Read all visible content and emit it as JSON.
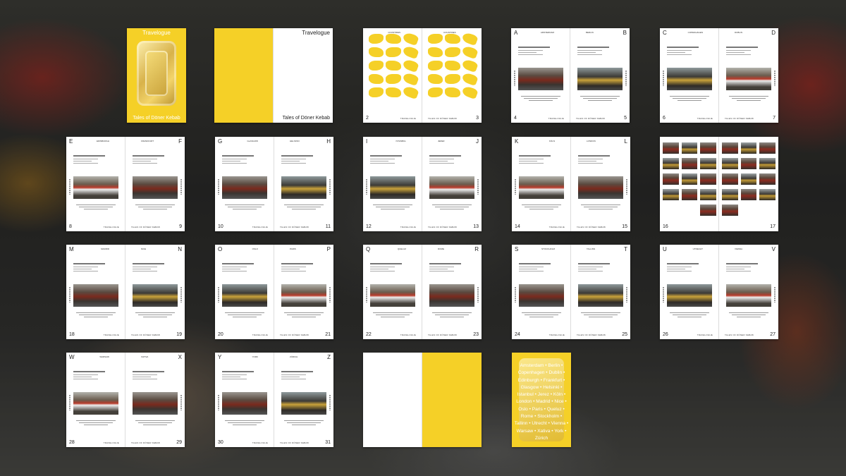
{
  "book": {
    "title": "Travelogue",
    "subtitle": "Tales of Döner Kebab",
    "footer_left": "TRAVELOGUE",
    "footer_right": "TALES OF DÖNER KEBAB"
  },
  "map_spread": {
    "heading_left": "COUNTRIES",
    "heading_right": "COUNTRIES",
    "pages": [
      "2",
      "3"
    ]
  },
  "city_spreads": [
    {
      "letters": [
        "A",
        "B"
      ],
      "cities": [
        "AMSTERDAM",
        "BERLIN"
      ],
      "pages": [
        "4",
        "5"
      ]
    },
    {
      "letters": [
        "C",
        "D"
      ],
      "cities": [
        "COPENHAGEN",
        "DUBLIN"
      ],
      "pages": [
        "6",
        "7"
      ]
    },
    {
      "letters": [
        "E",
        "F"
      ],
      "cities": [
        "EDINBURGH",
        "FRANKFURT"
      ],
      "pages": [
        "8",
        "9"
      ]
    },
    {
      "letters": [
        "G",
        "H"
      ],
      "cities": [
        "GLASGOW",
        "HELSINKI"
      ],
      "pages": [
        "10",
        "11"
      ]
    },
    {
      "letters": [
        "I",
        "J"
      ],
      "cities": [
        "ISTANBUL",
        "JEREZ"
      ],
      "pages": [
        "12",
        "13"
      ]
    },
    {
      "letters": [
        "K",
        "L"
      ],
      "cities": [
        "KÖLN",
        "LONDON"
      ],
      "pages": [
        "14",
        "15"
      ]
    },
    {
      "letters": [
        "M",
        "N"
      ],
      "cities": [
        "MADRID",
        "NICE"
      ],
      "pages": [
        "18",
        "19"
      ]
    },
    {
      "letters": [
        "O",
        "P"
      ],
      "cities": [
        "OSLO",
        "PARIS"
      ],
      "pages": [
        "20",
        "21"
      ]
    },
    {
      "letters": [
        "Q",
        "R"
      ],
      "cities": [
        "QUELUZ",
        "ROME"
      ],
      "pages": [
        "22",
        "23"
      ]
    },
    {
      "letters": [
        "S",
        "T"
      ],
      "cities": [
        "STOCKHOLM",
        "TALLINN"
      ],
      "pages": [
        "24",
        "25"
      ]
    },
    {
      "letters": [
        "U",
        "V"
      ],
      "cities": [
        "UTRECHT",
        "VIENNA"
      ],
      "pages": [
        "26",
        "27"
      ]
    },
    {
      "letters": [
        "W",
        "X"
      ],
      "cities": [
        "WARSAW",
        "XATIVA"
      ],
      "pages": [
        "28",
        "29"
      ]
    },
    {
      "letters": [
        "Y",
        "Z"
      ],
      "cities": [
        "YORK",
        "ZÜRICH"
      ],
      "pages": [
        "30",
        "31"
      ]
    }
  ],
  "photo_spread": {
    "pages": [
      "16",
      "17"
    ]
  },
  "back_cover": {
    "cities_lines": [
      "Amsterdam • Berlin •",
      "Copenhagen • Dublin •",
      "Edinburgh • Frankfurt •",
      "Glasgow • Helsinki •",
      "Istanbul • Jerez • Köln •",
      "London • Madrid • Nice •",
      "Oslo • Paris • Queluz •",
      "Rome • Stockholm •",
      "Tallinn • Utrecht • Vienna •",
      "Warsaw • Xativa • York •",
      "Zürich"
    ]
  },
  "colors": {
    "brand_yellow": "#f5d027",
    "page_white": "#ffffff"
  }
}
